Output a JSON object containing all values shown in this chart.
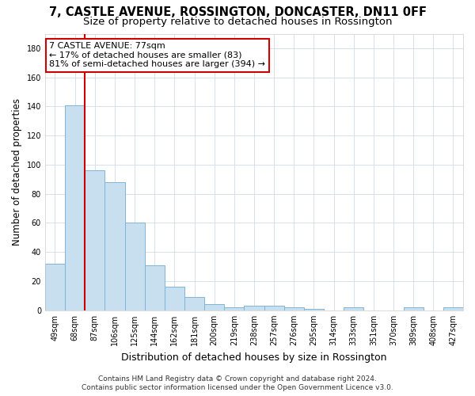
{
  "title": "7, CASTLE AVENUE, ROSSINGTON, DONCASTER, DN11 0FF",
  "subtitle": "Size of property relative to detached houses in Rossington",
  "xlabel": "Distribution of detached houses by size in Rossington",
  "ylabel": "Number of detached properties",
  "categories": [
    "49sqm",
    "68sqm",
    "87sqm",
    "106sqm",
    "125sqm",
    "144sqm",
    "162sqm",
    "181sqm",
    "200sqm",
    "219sqm",
    "238sqm",
    "257sqm",
    "276sqm",
    "295sqm",
    "314sqm",
    "333sqm",
    "351sqm",
    "370sqm",
    "389sqm",
    "408sqm",
    "427sqm"
  ],
  "values": [
    32,
    141,
    96,
    88,
    60,
    31,
    16,
    9,
    4,
    2,
    3,
    3,
    2,
    1,
    0,
    2,
    0,
    0,
    2,
    0,
    2
  ],
  "bar_color": "#c8dff0",
  "bar_edge_color": "#7fb5d5",
  "red_line_x": 1.5,
  "red_line_color": "#cc0000",
  "ylim": [
    0,
    190
  ],
  "yticks": [
    0,
    20,
    40,
    60,
    80,
    100,
    120,
    140,
    160,
    180
  ],
  "annotation_text_line1": "7 CASTLE AVENUE: 77sqm",
  "annotation_text_line2": "← 17% of detached houses are smaller (83)",
  "annotation_text_line3": "81% of semi-detached houses are larger (394) →",
  "annotation_box_facecolor": "#ffffff",
  "annotation_box_edgecolor": "#cc0000",
  "footer_line1": "Contains HM Land Registry data © Crown copyright and database right 2024.",
  "footer_line2": "Contains public sector information licensed under the Open Government Licence v3.0.",
  "background_color": "#ffffff",
  "plot_bg_color": "#ffffff",
  "grid_color": "#d0dce8",
  "title_fontsize": 10.5,
  "subtitle_fontsize": 9.5,
  "ylabel_fontsize": 8.5,
  "xlabel_fontsize": 9,
  "tick_fontsize": 7,
  "annotation_fontsize": 8,
  "footer_fontsize": 6.5
}
